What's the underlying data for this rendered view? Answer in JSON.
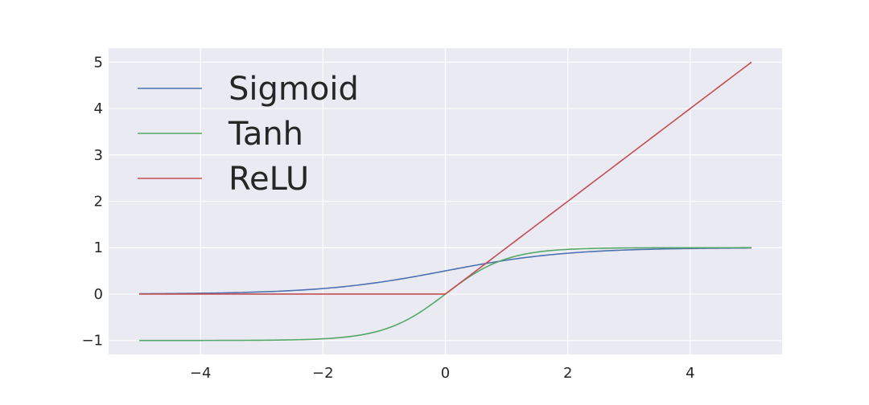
{
  "chart_data": {
    "type": "line",
    "title": "",
    "xlabel": "",
    "ylabel": "",
    "xlim": [
      -5.5,
      5.5
    ],
    "ylim": [
      -1.3,
      5.3
    ],
    "x_ticks": [
      -4,
      -2,
      0,
      2,
      4
    ],
    "x_tick_labels": [
      "−4",
      "−2",
      "0",
      "2",
      "4"
    ],
    "y_ticks": [
      -1,
      0,
      1,
      2,
      3,
      4,
      5
    ],
    "y_tick_labels": [
      "−1",
      "0",
      "1",
      "2",
      "3",
      "4",
      "5"
    ],
    "grid": true,
    "legend_position": "top-left",
    "background_color": "#eaeaf2",
    "grid_color": "#ffffff",
    "x": [
      -5,
      -4.5,
      -4,
      -3.5,
      -3,
      -2.5,
      -2,
      -1.5,
      -1,
      -0.75,
      -0.5,
      -0.25,
      0,
      0.25,
      0.5,
      0.75,
      1,
      1.5,
      2,
      2.5,
      3,
      3.5,
      4,
      4.5,
      5
    ],
    "series": [
      {
        "name": "Sigmoid",
        "color": "#4c72b0",
        "values": [
          0.007,
          0.011,
          0.018,
          0.029,
          0.047,
          0.076,
          0.119,
          0.182,
          0.269,
          0.321,
          0.378,
          0.438,
          0.5,
          0.562,
          0.622,
          0.679,
          0.731,
          0.818,
          0.881,
          0.924,
          0.953,
          0.971,
          0.982,
          0.989,
          0.993
        ]
      },
      {
        "name": "Tanh",
        "color": "#55a868",
        "values": [
          -1.0,
          -1.0,
          -0.999,
          -0.998,
          -0.995,
          -0.987,
          -0.964,
          -0.905,
          -0.762,
          -0.635,
          -0.462,
          -0.245,
          0.0,
          0.245,
          0.462,
          0.635,
          0.762,
          0.905,
          0.964,
          0.987,
          0.995,
          0.998,
          0.999,
          1.0,
          1.0
        ]
      },
      {
        "name": "ReLU",
        "color": "#c44e52",
        "values": [
          0,
          0,
          0,
          0,
          0,
          0,
          0,
          0,
          0,
          0,
          0,
          0,
          0,
          0.25,
          0.5,
          0.75,
          1,
          1.5,
          2,
          2.5,
          3,
          3.5,
          4,
          4.5,
          5
        ]
      }
    ]
  }
}
